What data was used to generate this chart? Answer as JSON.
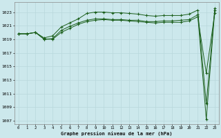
{
  "title": "Graphe pression niveau de la mer (hPa)",
  "xlabel_ticks": [
    0,
    1,
    2,
    3,
    4,
    5,
    6,
    7,
    8,
    9,
    10,
    11,
    12,
    13,
    14,
    15,
    16,
    17,
    18,
    19,
    20,
    21,
    22,
    23
  ],
  "ylim": [
    1006.5,
    1024.5
  ],
  "yticks": [
    1007,
    1009,
    1011,
    1013,
    1015,
    1017,
    1019,
    1021,
    1023
  ],
  "bg_color": "#cce8ec",
  "line_color": "#1a5e1a",
  "grid_major_color": "#b8d8dc",
  "grid_minor_color": "#cce8ec",
  "line1_x": [
    0,
    1,
    2,
    3,
    4,
    5,
    6,
    7,
    8,
    9,
    10,
    11,
    12,
    13,
    14,
    15,
    16,
    17,
    18,
    19,
    20,
    21,
    22,
    23
  ],
  "line1_y": [
    1019.8,
    1019.8,
    1020.0,
    1019.0,
    1019.1,
    1020.3,
    1020.9,
    1021.4,
    1021.8,
    1022.0,
    1022.0,
    1021.9,
    1021.9,
    1021.8,
    1021.8,
    1021.6,
    1021.6,
    1021.7,
    1021.7,
    1021.8,
    1021.9,
    1022.6,
    1007.2,
    1023.3
  ],
  "line2_x": [
    0,
    1,
    2,
    3,
    4,
    5,
    6,
    7,
    8,
    9,
    10,
    11,
    12,
    13,
    14,
    15,
    16,
    17,
    18,
    19,
    20,
    21,
    22,
    23
  ],
  "line2_y": [
    1019.8,
    1019.8,
    1020.0,
    1019.2,
    1019.5,
    1020.8,
    1021.4,
    1022.0,
    1022.8,
    1023.0,
    1023.0,
    1022.9,
    1022.9,
    1022.8,
    1022.7,
    1022.5,
    1022.4,
    1022.5,
    1022.5,
    1022.5,
    1022.7,
    1023.3,
    1009.5,
    1023.6
  ],
  "line3_x": [
    0,
    1,
    2,
    3,
    4,
    5,
    6,
    7,
    8,
    9,
    10,
    11,
    12,
    13,
    14,
    15,
    16,
    17,
    18,
    19,
    20,
    21,
    22,
    23
  ],
  "line3_y": [
    1019.8,
    1019.8,
    1020.0,
    1019.0,
    1019.0,
    1020.0,
    1020.6,
    1021.2,
    1021.6,
    1021.8,
    1021.9,
    1021.8,
    1021.8,
    1021.7,
    1021.6,
    1021.5,
    1021.4,
    1021.5,
    1021.5,
    1021.5,
    1021.7,
    1022.3,
    1014.0,
    1022.9
  ],
  "figwidth": 3.2,
  "figheight": 2.0,
  "dpi": 100
}
